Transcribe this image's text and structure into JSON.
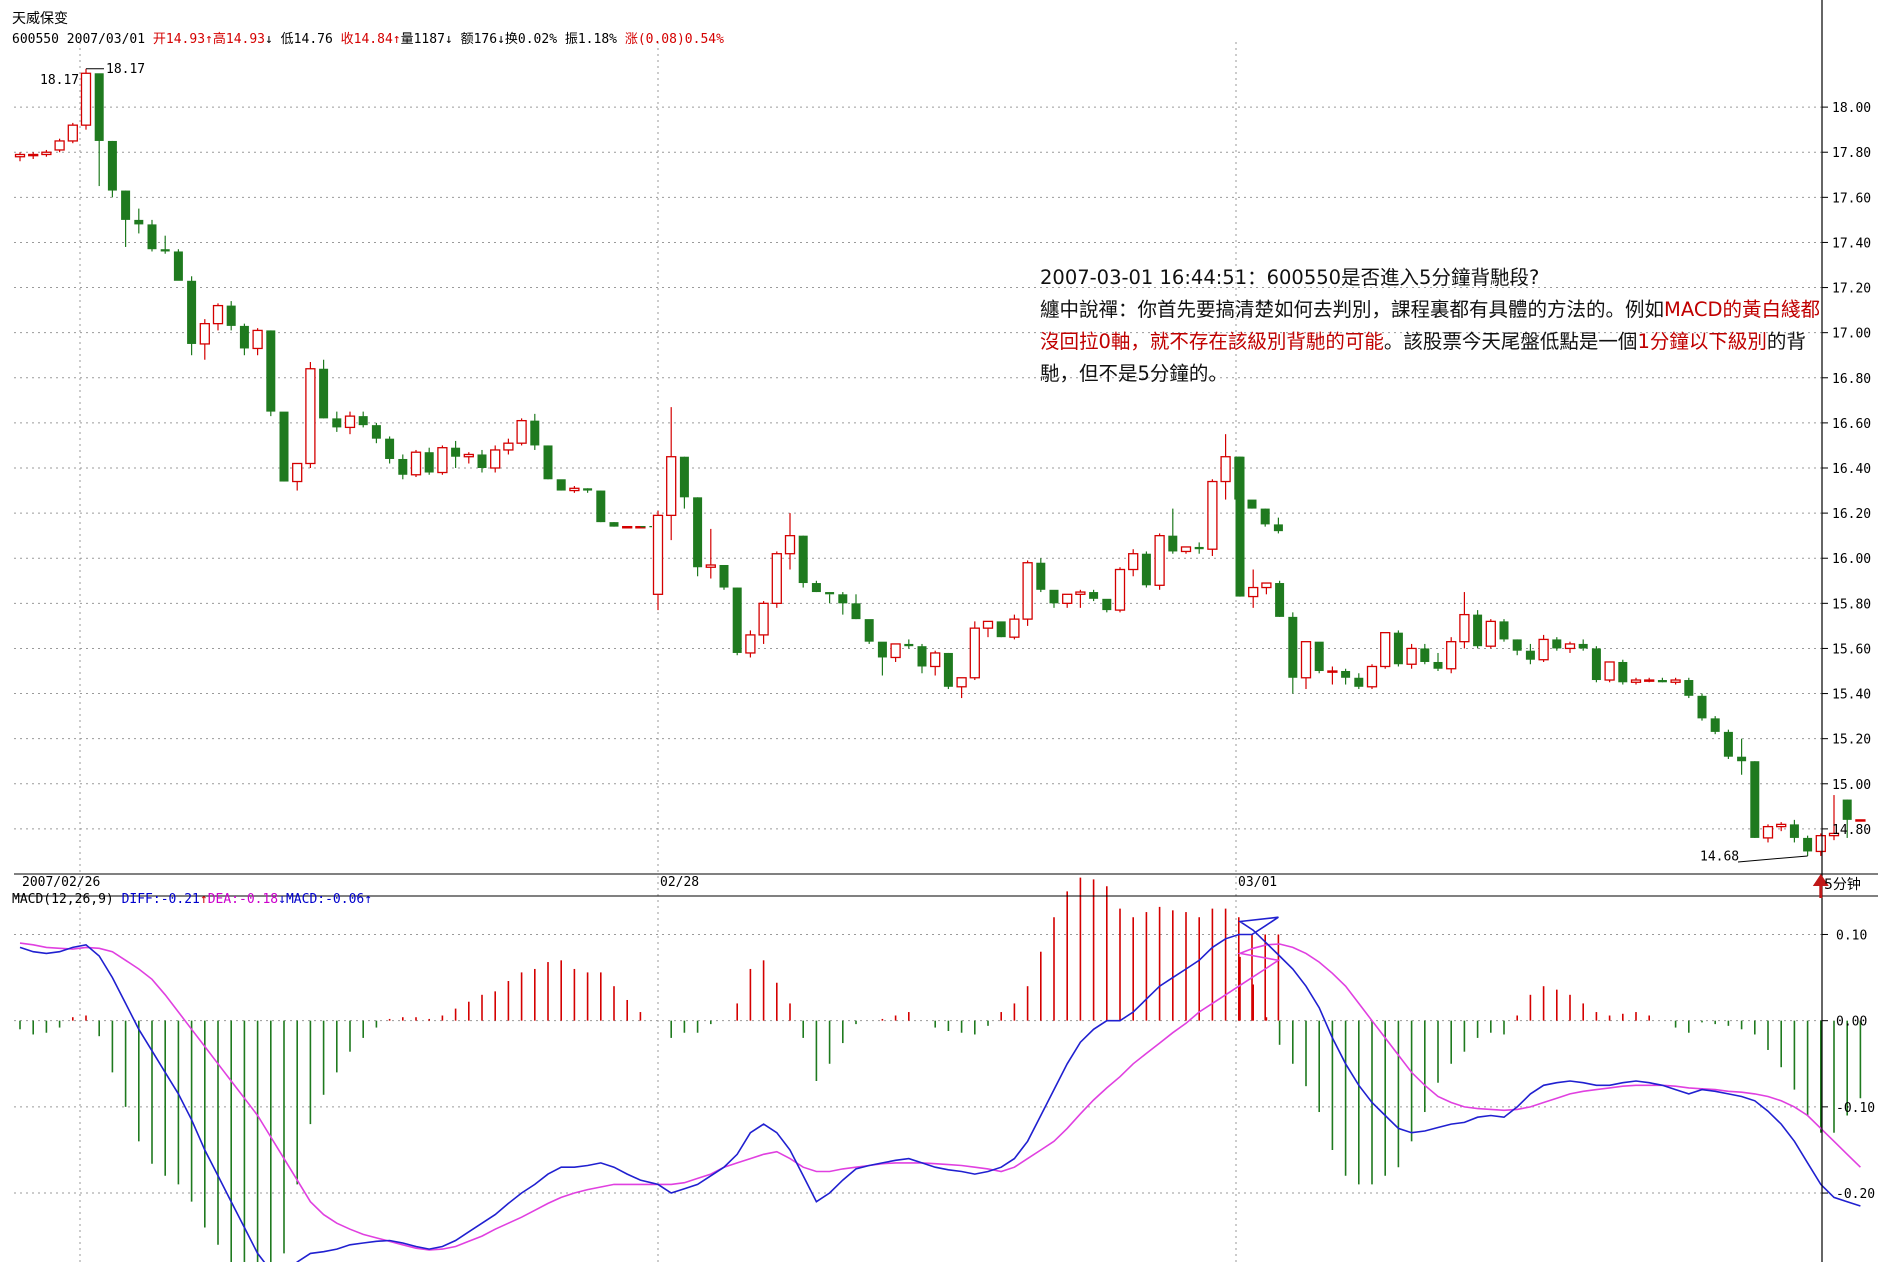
{
  "header": {
    "stock_name": "天威保变",
    "code": "600550",
    "date": "2007/03/01",
    "open": "开14.93",
    "high": "高14.93",
    "low": "低14.76",
    "close": "收14.84",
    "volume": "量1187",
    "amount": "额176",
    "turnover": "换0.02%",
    "amplitude": "振1.18%",
    "change": "涨(0.08)0.54%"
  },
  "macd_header": {
    "label": "MACD(12,26,9)",
    "diff": "DIFF:-0.21",
    "dea": "DEA:-0.18",
    "macd": "MACD:-0.06"
  },
  "annotation": {
    "line1": "2007-03-01 16:44:51：600550是否進入5分鐘背馳段?",
    "l2a": "纏中說禪：你首先要搞清楚如何去判別，課程裏都有具體的方法的。例如",
    "l2b": "MACD的黃白綫都沒回拉0軸，就不存在該級別背馳的可能",
    "l2c": "。該股票今天尾盤低點是一個",
    "l2d": "1分鐘以下級別",
    "l2e": "的背馳，但不是5分鐘的。"
  },
  "period_label": "5分钟",
  "colors": {
    "up": "#d40000",
    "down": "#1f7a1f",
    "diff": "#2020d0",
    "dea": "#e040e0",
    "grid": "#9a9a9a",
    "arrow": "#c01818"
  },
  "chart_data": [
    {
      "type": "candlestick",
      "x_labels": [
        "2007/02/26",
        "02/28",
        "03/01"
      ],
      "x_label_bar_index": [
        0,
        48,
        48
      ],
      "ylim": [
        14.6,
        18.2
      ],
      "yticks": [
        "18.00",
        "17.80",
        "17.60",
        "17.40",
        "17.20",
        "17.00",
        "16.80",
        "16.60",
        "16.40",
        "16.20",
        "16.00",
        "15.80",
        "15.60",
        "15.40",
        "15.20",
        "15.00",
        "14.80"
      ],
      "annotations": {
        "high_label": "18.17",
        "low_label": "14.68"
      },
      "segment_bar_counts": [
        48,
        48,
        48
      ],
      "bars": [
        [
          17.78,
          17.8,
          17.76,
          17.79
        ],
        [
          17.79,
          17.8,
          17.77,
          17.79
        ],
        [
          17.79,
          17.81,
          17.78,
          17.8
        ],
        [
          17.81,
          17.86,
          17.8,
          17.85
        ],
        [
          17.85,
          17.93,
          17.84,
          17.92
        ],
        [
          17.92,
          18.17,
          17.9,
          18.15
        ],
        [
          18.15,
          18.05,
          17.65,
          17.85
        ],
        [
          17.85,
          17.85,
          17.6,
          17.63
        ],
        [
          17.63,
          17.63,
          17.38,
          17.5
        ],
        [
          17.5,
          17.55,
          17.44,
          17.48
        ],
        [
          17.48,
          17.5,
          17.36,
          17.37
        ],
        [
          17.37,
          17.43,
          17.35,
          17.36
        ],
        [
          17.36,
          17.37,
          17.24,
          17.23
        ],
        [
          17.23,
          17.25,
          16.9,
          16.95
        ],
        [
          16.95,
          17.06,
          16.88,
          17.04
        ],
        [
          17.04,
          17.13,
          17.01,
          17.12
        ],
        [
          17.12,
          17.14,
          17.01,
          17.03
        ],
        [
          17.03,
          17.04,
          16.9,
          16.93
        ],
        [
          16.93,
          17.02,
          16.9,
          17.01
        ],
        [
          17.01,
          17.01,
          16.63,
          16.65
        ],
        [
          16.65,
          16.62,
          16.34,
          16.34
        ],
        [
          16.34,
          16.42,
          16.3,
          16.42
        ],
        [
          16.42,
          16.87,
          16.4,
          16.84
        ],
        [
          16.84,
          16.88,
          16.62,
          16.62
        ],
        [
          16.62,
          16.65,
          16.56,
          16.58
        ],
        [
          16.58,
          16.65,
          16.55,
          16.63
        ],
        [
          16.63,
          16.65,
          16.58,
          16.59
        ],
        [
          16.59,
          16.6,
          16.51,
          16.53
        ],
        [
          16.53,
          16.54,
          16.42,
          16.44
        ],
        [
          16.44,
          16.46,
          16.35,
          16.37
        ],
        [
          16.37,
          16.48,
          16.36,
          16.47
        ],
        [
          16.47,
          16.49,
          16.37,
          16.38
        ],
        [
          16.38,
          16.5,
          16.37,
          16.49
        ],
        [
          16.49,
          16.52,
          16.4,
          16.45
        ],
        [
          16.45,
          16.47,
          16.42,
          16.46
        ],
        [
          16.46,
          16.48,
          16.38,
          16.4
        ],
        [
          16.4,
          16.5,
          16.38,
          16.48
        ],
        [
          16.48,
          16.53,
          16.46,
          16.51
        ],
        [
          16.51,
          16.62,
          16.5,
          16.61
        ],
        [
          16.61,
          16.64,
          16.48,
          16.5
        ],
        [
          16.5,
          16.5,
          16.35,
          16.35
        ],
        [
          16.35,
          16.34,
          16.3,
          16.3
        ],
        [
          16.3,
          16.32,
          16.29,
          16.31
        ],
        [
          16.31,
          16.31,
          16.29,
          16.3
        ],
        [
          16.3,
          16.3,
          16.16,
          16.16
        ],
        [
          16.16,
          16.16,
          16.14,
          16.14
        ],
        [
          16.14,
          16.14,
          16.14,
          16.14
        ],
        [
          16.14,
          16.14,
          16.14,
          16.14
        ],
        [
          15.84,
          16.21,
          15.77,
          16.19
        ],
        [
          16.19,
          16.67,
          16.08,
          16.45
        ],
        [
          16.45,
          16.45,
          16.22,
          16.27
        ],
        [
          16.27,
          16.27,
          15.92,
          15.96
        ],
        [
          15.96,
          16.13,
          15.91,
          15.97
        ],
        [
          15.97,
          15.96,
          15.86,
          15.87
        ],
        [
          15.87,
          15.87,
          15.57,
          15.58
        ],
        [
          15.58,
          15.68,
          15.56,
          15.66
        ],
        [
          15.66,
          15.81,
          15.62,
          15.8
        ],
        [
          15.8,
          16.03,
          15.78,
          16.02
        ],
        [
          16.02,
          16.2,
          15.95,
          16.1
        ],
        [
          16.1,
          16.1,
          15.87,
          15.89
        ],
        [
          15.89,
          15.9,
          15.85,
          15.85
        ],
        [
          15.85,
          15.84,
          15.8,
          15.84
        ],
        [
          15.84,
          15.85,
          15.75,
          15.8
        ],
        [
          15.8,
          15.84,
          15.73,
          15.73
        ],
        [
          15.73,
          15.72,
          15.62,
          15.63
        ],
        [
          15.63,
          15.6,
          15.48,
          15.56
        ],
        [
          15.56,
          15.62,
          15.54,
          15.62
        ],
        [
          15.62,
          15.64,
          15.6,
          15.61
        ],
        [
          15.61,
          15.62,
          15.49,
          15.52
        ],
        [
          15.52,
          15.59,
          15.48,
          15.58
        ],
        [
          15.58,
          15.58,
          15.42,
          15.43
        ],
        [
          15.43,
          15.46,
          15.38,
          15.47
        ],
        [
          15.47,
          15.72,
          15.46,
          15.69
        ],
        [
          15.69,
          15.72,
          15.65,
          15.72
        ],
        [
          15.72,
          15.7,
          15.65,
          15.65
        ],
        [
          15.65,
          15.75,
          15.64,
          15.73
        ],
        [
          15.73,
          15.99,
          15.7,
          15.98
        ],
        [
          15.98,
          16.0,
          15.85,
          15.86
        ],
        [
          15.86,
          15.84,
          15.78,
          15.8
        ],
        [
          15.8,
          15.84,
          15.78,
          15.84
        ],
        [
          15.84,
          15.86,
          15.78,
          15.85
        ],
        [
          15.85,
          15.86,
          15.81,
          15.82
        ],
        [
          15.82,
          15.81,
          15.76,
          15.77
        ],
        [
          15.77,
          15.96,
          15.76,
          15.95
        ],
        [
          15.95,
          16.04,
          15.92,
          16.02
        ],
        [
          16.02,
          16.03,
          15.87,
          15.88
        ],
        [
          15.88,
          16.11,
          15.86,
          16.1
        ],
        [
          16.1,
          16.22,
          16.02,
          16.03
        ],
        [
          16.03,
          16.05,
          16.02,
          16.05
        ],
        [
          16.05,
          16.07,
          16.02,
          16.04
        ],
        [
          16.04,
          16.35,
          16.01,
          16.34
        ],
        [
          16.34,
          16.55,
          16.26,
          16.45
        ],
        [
          16.45,
          16.45,
          16.25,
          16.26
        ],
        [
          16.26,
          16.25,
          16.22,
          16.22
        ],
        [
          16.22,
          16.22,
          16.14,
          16.15
        ],
        [
          16.15,
          16.18,
          16.11,
          16.12
        ],
        [
          16.45,
          16.45,
          15.83,
          15.83
        ],
        [
          15.83,
          15.95,
          15.78,
          15.87
        ],
        [
          15.87,
          15.89,
          15.84,
          15.89
        ],
        [
          15.89,
          15.9,
          15.74,
          15.74
        ],
        [
          15.74,
          15.76,
          15.4,
          15.47
        ],
        [
          15.47,
          15.63,
          15.42,
          15.63
        ],
        [
          15.63,
          15.62,
          15.49,
          15.5
        ],
        [
          15.5,
          15.52,
          15.44,
          15.5
        ],
        [
          15.5,
          15.51,
          15.44,
          15.47
        ],
        [
          15.47,
          15.49,
          15.42,
          15.43
        ],
        [
          15.43,
          15.53,
          15.42,
          15.52
        ],
        [
          15.52,
          15.67,
          15.51,
          15.67
        ],
        [
          15.67,
          15.68,
          15.52,
          15.53
        ],
        [
          15.53,
          15.62,
          15.51,
          15.6
        ],
        [
          15.6,
          15.62,
          15.53,
          15.54
        ],
        [
          15.54,
          15.58,
          15.5,
          15.51
        ],
        [
          15.51,
          15.65,
          15.49,
          15.63
        ],
        [
          15.63,
          15.85,
          15.6,
          15.75
        ],
        [
          15.75,
          15.77,
          15.6,
          15.61
        ],
        [
          15.61,
          15.73,
          15.6,
          15.72
        ],
        [
          15.72,
          15.73,
          15.63,
          15.64
        ],
        [
          15.64,
          15.64,
          15.57,
          15.59
        ],
        [
          15.59,
          15.62,
          15.53,
          15.55
        ],
        [
          15.55,
          15.66,
          15.54,
          15.64
        ],
        [
          15.64,
          15.65,
          15.59,
          15.6
        ],
        [
          15.6,
          15.63,
          15.58,
          15.62
        ],
        [
          15.62,
          15.64,
          15.59,
          15.6
        ],
        [
          15.6,
          15.61,
          15.45,
          15.46
        ],
        [
          15.46,
          15.54,
          15.45,
          15.54
        ],
        [
          15.54,
          15.55,
          15.44,
          15.45
        ],
        [
          15.45,
          15.47,
          15.44,
          15.46
        ],
        [
          15.46,
          15.47,
          15.45,
          15.46
        ],
        [
          15.46,
          15.47,
          15.45,
          15.45
        ],
        [
          15.45,
          15.47,
          15.44,
          15.46
        ],
        [
          15.46,
          15.47,
          15.38,
          15.39
        ],
        [
          15.39,
          15.4,
          15.28,
          15.29
        ],
        [
          15.29,
          15.3,
          15.22,
          15.23
        ],
        [
          15.23,
          15.24,
          15.11,
          15.12
        ],
        [
          15.12,
          15.2,
          15.04,
          15.1
        ],
        [
          15.1,
          15.1,
          14.76,
          14.76
        ],
        [
          14.76,
          14.82,
          14.74,
          14.81
        ],
        [
          14.81,
          14.83,
          14.79,
          14.82
        ],
        [
          14.82,
          14.84,
          14.74,
          14.76
        ],
        [
          14.76,
          14.77,
          14.68,
          14.7
        ],
        [
          14.7,
          14.78,
          14.68,
          14.77
        ],
        [
          14.77,
          14.95,
          14.75,
          14.78
        ],
        [
          14.93,
          14.93,
          14.76,
          14.84
        ],
        [
          14.84,
          14.84,
          14.84,
          14.84
        ]
      ]
    },
    {
      "type": "macd",
      "ylim": [
        -0.28,
        0.14
      ],
      "yticks": [
        "0.10",
        "0.00",
        "-0.10",
        "-0.20"
      ],
      "diff": [
        0.085,
        0.08,
        0.078,
        0.08,
        0.085,
        0.088,
        0.075,
        0.05,
        0.02,
        -0.01,
        -0.035,
        -0.06,
        -0.085,
        -0.115,
        -0.15,
        -0.18,
        -0.21,
        -0.24,
        -0.27,
        -0.29,
        -0.295,
        -0.28,
        -0.27,
        -0.268,
        -0.265,
        -0.26,
        -0.258,
        -0.256,
        -0.255,
        -0.258,
        -0.262,
        -0.265,
        -0.262,
        -0.255,
        -0.245,
        -0.235,
        -0.225,
        -0.212,
        -0.2,
        -0.19,
        -0.178,
        -0.17,
        -0.17,
        -0.168,
        -0.165,
        -0.17,
        -0.178,
        -0.185,
        -0.19,
        -0.2,
        -0.195,
        -0.19,
        -0.18,
        -0.17,
        -0.155,
        -0.13,
        -0.12,
        -0.13,
        -0.15,
        -0.18,
        -0.21,
        -0.2,
        -0.185,
        -0.172,
        -0.168,
        -0.165,
        -0.162,
        -0.16,
        -0.165,
        -0.17,
        -0.173,
        -0.175,
        -0.178,
        -0.175,
        -0.17,
        -0.16,
        -0.14,
        -0.11,
        -0.08,
        -0.05,
        -0.025,
        -0.01,
        0.0,
        0.0,
        0.01,
        0.025,
        0.04,
        0.05,
        0.06,
        0.07,
        0.085,
        0.095,
        0.1,
        0.1,
        0.11,
        0.12,
        0.115,
        0.105,
        0.09,
        0.075,
        0.06,
        0.04,
        0.015,
        -0.02,
        -0.05,
        -0.075,
        -0.095,
        -0.11,
        -0.125,
        -0.13,
        -0.128,
        -0.124,
        -0.12,
        -0.118,
        -0.112,
        -0.11,
        -0.112,
        -0.1,
        -0.085,
        -0.075,
        -0.072,
        -0.07,
        -0.072,
        -0.075,
        -0.075,
        -0.072,
        -0.07,
        -0.072,
        -0.075,
        -0.08,
        -0.085,
        -0.08,
        -0.082,
        -0.085,
        -0.088,
        -0.093,
        -0.105,
        -0.12,
        -0.14,
        -0.165,
        -0.19,
        -0.205,
        -0.21,
        -0.215,
        -0.213,
        -0.21
      ],
      "dea": [
        0.09,
        0.088,
        0.085,
        0.084,
        0.083,
        0.085,
        0.084,
        0.08,
        0.07,
        0.06,
        0.048,
        0.03,
        0.01,
        -0.01,
        -0.03,
        -0.05,
        -0.07,
        -0.09,
        -0.11,
        -0.135,
        -0.16,
        -0.185,
        -0.21,
        -0.225,
        -0.235,
        -0.242,
        -0.248,
        -0.252,
        -0.256,
        -0.26,
        -0.264,
        -0.266,
        -0.265,
        -0.262,
        -0.256,
        -0.25,
        -0.242,
        -0.235,
        -0.228,
        -0.22,
        -0.212,
        -0.205,
        -0.2,
        -0.196,
        -0.193,
        -0.19,
        -0.19,
        -0.19,
        -0.19,
        -0.19,
        -0.188,
        -0.183,
        -0.178,
        -0.17,
        -0.165,
        -0.16,
        -0.155,
        -0.152,
        -0.16,
        -0.17,
        -0.175,
        -0.175,
        -0.172,
        -0.17,
        -0.168,
        -0.166,
        -0.165,
        -0.165,
        -0.165,
        -0.166,
        -0.167,
        -0.168,
        -0.17,
        -0.172,
        -0.175,
        -0.17,
        -0.16,
        -0.15,
        -0.14,
        -0.125,
        -0.108,
        -0.092,
        -0.078,
        -0.065,
        -0.05,
        -0.038,
        -0.026,
        -0.014,
        -0.003,
        0.01,
        0.02,
        0.03,
        0.04,
        0.05,
        0.06,
        0.07,
        0.078,
        0.084,
        0.088,
        0.089,
        0.085,
        0.078,
        0.068,
        0.055,
        0.04,
        0.02,
        0.0,
        -0.02,
        -0.04,
        -0.06,
        -0.075,
        -0.088,
        -0.095,
        -0.1,
        -0.102,
        -0.103,
        -0.104,
        -0.103,
        -0.1,
        -0.095,
        -0.09,
        -0.085,
        -0.082,
        -0.08,
        -0.078,
        -0.076,
        -0.075,
        -0.075,
        -0.075,
        -0.076,
        -0.078,
        -0.079,
        -0.08,
        -0.082,
        -0.083,
        -0.085,
        -0.088,
        -0.093,
        -0.1,
        -0.11,
        -0.125,
        -0.14,
        -0.155,
        -0.17,
        -0.18,
        -0.185
      ]
    }
  ]
}
